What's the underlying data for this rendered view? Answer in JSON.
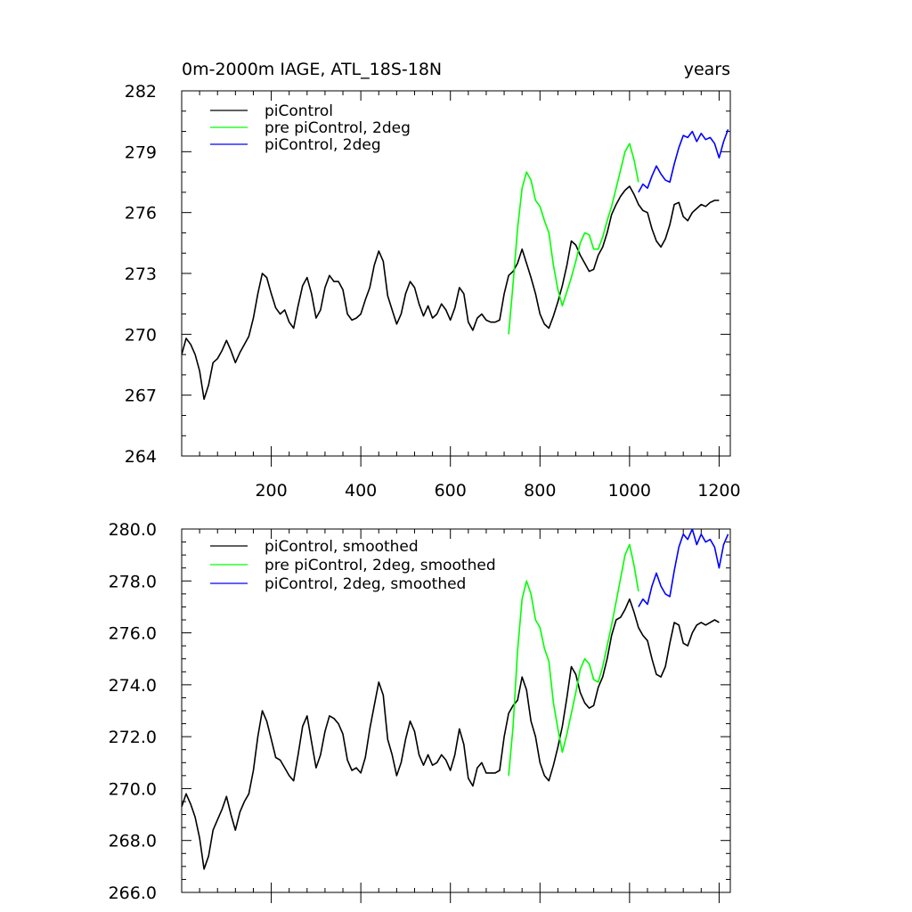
{
  "chart_data": [
    {
      "type": "line",
      "title": "0m-2000m IAGE, ATL_18S-18N",
      "right_title": "years",
      "xlim": [
        0,
        1225
      ],
      "ylim": [
        264,
        282
      ],
      "xticks": [
        200,
        400,
        600,
        800,
        1000,
        1200
      ],
      "xtick_labels": [
        "200",
        "400",
        "600",
        "800",
        "1000",
        "1200"
      ],
      "yticks": [
        264,
        267,
        270,
        273,
        276,
        279,
        282
      ],
      "ytick_labels": [
        "264",
        "267",
        "270",
        "273",
        "276",
        "279",
        "282"
      ],
      "legend": "top-left",
      "series": [
        {
          "name": "piControl",
          "color": "#000000",
          "x": [
            0,
            10,
            20,
            30,
            40,
            50,
            60,
            70,
            80,
            90,
            100,
            110,
            120,
            130,
            140,
            150,
            160,
            170,
            180,
            190,
            200,
            210,
            220,
            230,
            240,
            250,
            260,
            270,
            280,
            290,
            300,
            310,
            320,
            330,
            340,
            350,
            360,
            370,
            380,
            390,
            400,
            410,
            420,
            430,
            440,
            450,
            460,
            470,
            480,
            490,
            500,
            510,
            520,
            530,
            540,
            550,
            560,
            570,
            580,
            590,
            600,
            610,
            620,
            630,
            640,
            650,
            660,
            670,
            680,
            690,
            700,
            710,
            720,
            730,
            740,
            750,
            760,
            770,
            780,
            790,
            800,
            810,
            820,
            830,
            840,
            850,
            860,
            870,
            880,
            890,
            900,
            910,
            920,
            930,
            940,
            950,
            960,
            970,
            980,
            990,
            1000,
            1010,
            1020,
            1030,
            1040,
            1050,
            1060,
            1070,
            1080,
            1090,
            1100,
            1110,
            1120,
            1130,
            1140,
            1150,
            1160,
            1170,
            1180,
            1190,
            1200
          ],
          "values": [
            269.0,
            269.8,
            269.5,
            269.0,
            268.2,
            266.8,
            267.5,
            268.6,
            268.8,
            269.2,
            269.7,
            269.2,
            268.6,
            269.1,
            269.5,
            269.9,
            270.8,
            272.0,
            273.0,
            272.8,
            272.0,
            271.3,
            271.0,
            271.2,
            270.6,
            270.3,
            271.4,
            272.4,
            272.8,
            272.0,
            270.8,
            271.2,
            272.3,
            272.9,
            272.6,
            272.6,
            272.2,
            271.0,
            270.7,
            270.8,
            271.0,
            271.7,
            272.3,
            273.4,
            274.1,
            273.6,
            271.9,
            271.2,
            270.5,
            271.0,
            272.0,
            272.6,
            272.3,
            271.5,
            270.9,
            271.4,
            270.8,
            271.0,
            271.5,
            271.2,
            270.7,
            271.3,
            272.3,
            272.0,
            270.6,
            270.2,
            270.8,
            271.0,
            270.7,
            270.6,
            270.6,
            270.7,
            272.0,
            272.9,
            273.1,
            273.5,
            274.2,
            273.5,
            272.8,
            272.0,
            271.0,
            270.5,
            270.3,
            270.9,
            271.6,
            272.4,
            273.4,
            274.6,
            274.4,
            273.9,
            273.5,
            273.1,
            273.2,
            273.9,
            274.3,
            275.0,
            275.9,
            276.4,
            276.8,
            277.1,
            277.3,
            276.9,
            276.4,
            276.1,
            276.0,
            275.2,
            274.6,
            274.3,
            274.7,
            275.4,
            276.4,
            276.5,
            275.8,
            275.6,
            276.0,
            276.2,
            276.4,
            276.3,
            276.5,
            276.6,
            276.6
          ]
        },
        {
          "name": "pre piControl, 2deg",
          "color": "#00ff00",
          "x": [
            730,
            740,
            750,
            760,
            770,
            780,
            790,
            800,
            810,
            820,
            830,
            840,
            850,
            860,
            870,
            880,
            890,
            900,
            910,
            920,
            930,
            940,
            950,
            960,
            970,
            980,
            990,
            1000,
            1010,
            1020
          ],
          "values": [
            270.0,
            272.5,
            275.2,
            277.2,
            278.0,
            277.6,
            276.6,
            276.3,
            275.6,
            275.0,
            273.4,
            272.2,
            271.4,
            272.1,
            272.8,
            273.6,
            274.5,
            275.0,
            274.9,
            274.2,
            274.2,
            274.8,
            275.6,
            276.3,
            277.2,
            278.1,
            279.0,
            279.4,
            278.6,
            277.5
          ]
        },
        {
          "name": "piControl, 2deg",
          "color": "#0000ff",
          "x": [
            1020,
            1030,
            1040,
            1050,
            1060,
            1070,
            1080,
            1090,
            1100,
            1110,
            1120,
            1130,
            1140,
            1150,
            1160,
            1170,
            1180,
            1190,
            1200,
            1210,
            1220
          ],
          "values": [
            277.0,
            277.4,
            277.2,
            277.8,
            278.3,
            277.9,
            277.6,
            277.5,
            278.4,
            279.2,
            279.8,
            279.7,
            280.0,
            279.5,
            279.9,
            279.6,
            279.7,
            279.4,
            278.7,
            279.5,
            280.1
          ]
        }
      ]
    },
    {
      "type": "line",
      "title": "",
      "xlim": [
        0,
        1225
      ],
      "ylim": [
        266.0,
        280.0
      ],
      "xticks": [
        200,
        400,
        600,
        800,
        1000,
        1200
      ],
      "yticks": [
        266.0,
        268.0,
        270.0,
        272.0,
        274.0,
        276.0,
        278.0,
        280.0
      ],
      "ytick_labels": [
        "266.0",
        "268.0",
        "270.0",
        "272.0",
        "274.0",
        "276.0",
        "278.0",
        "280.0"
      ],
      "legend": "top-left",
      "series": [
        {
          "name": "piControl, smoothed",
          "color": "#000000",
          "x": [
            0,
            10,
            20,
            30,
            40,
            50,
            60,
            70,
            80,
            90,
            100,
            110,
            120,
            130,
            140,
            150,
            160,
            170,
            180,
            190,
            200,
            210,
            220,
            230,
            240,
            250,
            260,
            270,
            280,
            290,
            300,
            310,
            320,
            330,
            340,
            350,
            360,
            370,
            380,
            390,
            400,
            410,
            420,
            430,
            440,
            450,
            460,
            470,
            480,
            490,
            500,
            510,
            520,
            530,
            540,
            550,
            560,
            570,
            580,
            590,
            600,
            610,
            620,
            630,
            640,
            650,
            660,
            670,
            680,
            690,
            700,
            710,
            720,
            730,
            740,
            750,
            760,
            770,
            780,
            790,
            800,
            810,
            820,
            830,
            840,
            850,
            860,
            870,
            880,
            890,
            900,
            910,
            920,
            930,
            940,
            950,
            960,
            970,
            980,
            990,
            1000,
            1010,
            1020,
            1030,
            1040,
            1050,
            1060,
            1070,
            1080,
            1090,
            1100,
            1110,
            1120,
            1130,
            1140,
            1150,
            1160,
            1170,
            1180,
            1190,
            1200
          ],
          "values": [
            269.3,
            269.8,
            269.4,
            268.9,
            268.1,
            266.9,
            267.4,
            268.4,
            268.8,
            269.2,
            269.7,
            269.0,
            268.4,
            269.1,
            269.5,
            269.8,
            270.7,
            272.0,
            273.0,
            272.6,
            271.9,
            271.2,
            271.1,
            270.8,
            270.5,
            270.3,
            271.3,
            272.4,
            272.8,
            271.8,
            270.8,
            271.3,
            272.2,
            272.8,
            272.7,
            272.5,
            272.1,
            271.1,
            270.7,
            270.8,
            270.6,
            271.2,
            272.3,
            273.2,
            274.1,
            273.6,
            271.9,
            271.3,
            270.5,
            271.0,
            271.9,
            272.6,
            272.2,
            271.3,
            270.9,
            271.3,
            270.9,
            271.0,
            271.3,
            271.1,
            270.7,
            271.3,
            272.3,
            271.7,
            270.4,
            270.1,
            270.8,
            271.0,
            270.6,
            270.6,
            270.6,
            270.7,
            272.0,
            272.9,
            273.2,
            273.4,
            274.3,
            273.8,
            272.6,
            272.0,
            271.0,
            270.5,
            270.3,
            270.9,
            271.6,
            272.4,
            273.5,
            274.7,
            274.4,
            273.7,
            273.3,
            273.1,
            273.2,
            273.9,
            274.3,
            275.0,
            275.9,
            276.5,
            276.6,
            276.9,
            277.3,
            276.8,
            276.2,
            275.9,
            275.7,
            275.0,
            274.4,
            274.3,
            274.7,
            275.6,
            276.4,
            276.3,
            275.6,
            275.5,
            276.0,
            276.3,
            276.4,
            276.3,
            276.4,
            276.5,
            276.4
          ]
        },
        {
          "name": "pre piControl, 2deg, smoothed",
          "color": "#00ff00",
          "x": [
            730,
            740,
            750,
            760,
            770,
            780,
            790,
            800,
            810,
            820,
            830,
            840,
            850,
            860,
            870,
            880,
            890,
            900,
            910,
            920,
            930,
            940,
            950,
            960,
            970,
            980,
            990,
            1000,
            1010,
            1020
          ],
          "values": [
            270.5,
            272.4,
            275.3,
            277.3,
            278.0,
            277.5,
            276.5,
            276.2,
            275.4,
            274.9,
            273.3,
            272.3,
            271.4,
            272.1,
            272.9,
            273.7,
            274.6,
            275.0,
            274.8,
            274.2,
            274.1,
            274.7,
            275.5,
            276.3,
            277.2,
            278.1,
            279.0,
            279.4,
            278.6,
            277.6
          ]
        },
        {
          "name": "piControl, 2deg, smoothed",
          "color": "#0000ff",
          "x": [
            1020,
            1030,
            1040,
            1050,
            1060,
            1070,
            1080,
            1090,
            1100,
            1110,
            1120,
            1130,
            1140,
            1150,
            1160,
            1170,
            1180,
            1190,
            1200,
            1210,
            1220
          ],
          "values": [
            277.0,
            277.3,
            277.1,
            277.8,
            278.3,
            277.8,
            277.5,
            277.4,
            278.4,
            279.3,
            279.8,
            279.6,
            280.0,
            279.4,
            279.8,
            279.5,
            279.6,
            279.3,
            278.5,
            279.4,
            279.8
          ]
        }
      ]
    }
  ]
}
